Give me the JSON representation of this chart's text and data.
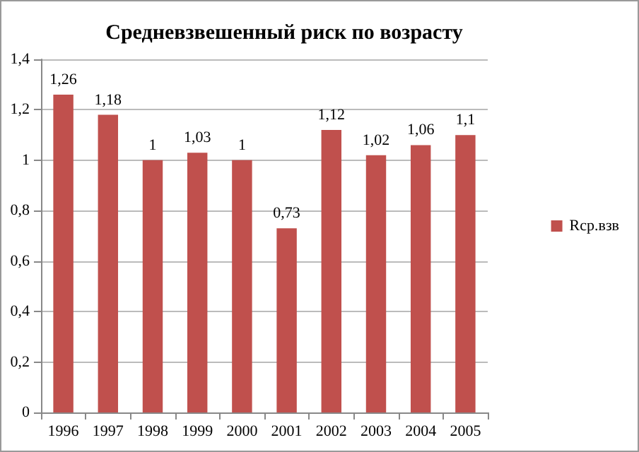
{
  "chart_data": {
    "type": "bar",
    "title": "Средневзвешенный риск по возрасту",
    "categories": [
      "1996",
      "1997",
      "1998",
      "1999",
      "2000",
      "2001",
      "2002",
      "2003",
      "2004",
      "2005"
    ],
    "series": [
      {
        "name": "Rср.взв",
        "color": "#c0504d",
        "values": [
          1.26,
          1.18,
          1,
          1.03,
          1,
          0.73,
          1.12,
          1.02,
          1.06,
          1.1
        ],
        "value_labels": [
          "1,26",
          "1,18",
          "1",
          "1,03",
          "1",
          "0,73",
          "1,12",
          "1,02",
          "1,06",
          "1,1"
        ]
      }
    ],
    "ylim": [
      0,
      1.4
    ],
    "yticks": [
      {
        "value": 0,
        "label": "0"
      },
      {
        "value": 0.2,
        "label": "0,2"
      },
      {
        "value": 0.4,
        "label": "0,4"
      },
      {
        "value": 0.6,
        "label": "0,6"
      },
      {
        "value": 0.8,
        "label": "0,8"
      },
      {
        "value": 1,
        "label": "1"
      },
      {
        "value": 1.2,
        "label": "1,2"
      },
      {
        "value": 1.4,
        "label": "1,4"
      }
    ],
    "grid": "y",
    "legend": "right"
  }
}
